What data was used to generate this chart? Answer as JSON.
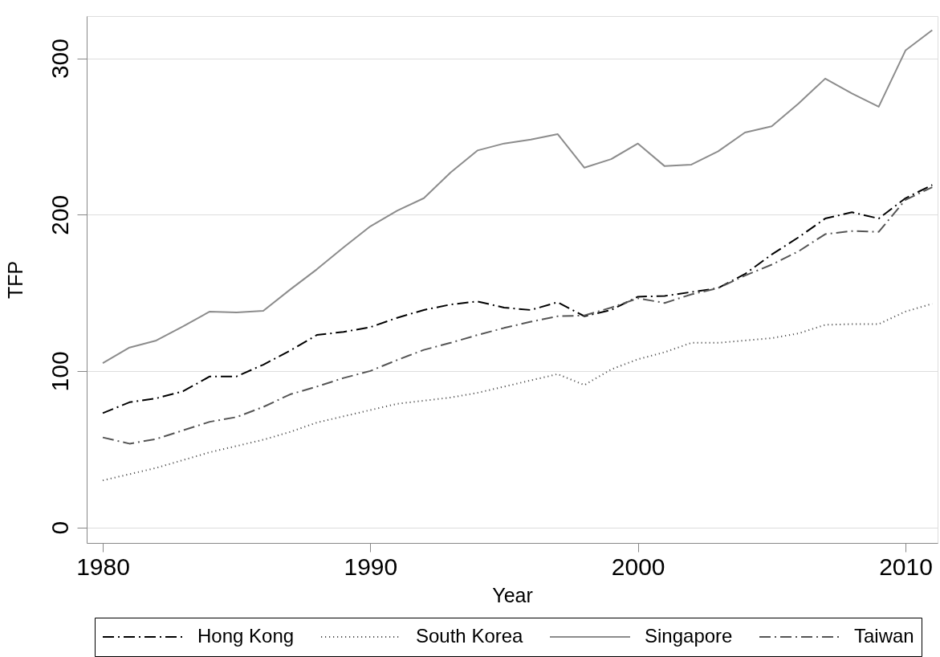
{
  "chart_data": {
    "type": "line",
    "xlabel": "Year",
    "ylabel": "TFP",
    "x": [
      1980,
      1981,
      1982,
      1983,
      1984,
      1985,
      1986,
      1987,
      1988,
      1989,
      1990,
      1991,
      1992,
      1993,
      1994,
      1995,
      1996,
      1997,
      1998,
      1999,
      2000,
      2001,
      2002,
      2003,
      2004,
      2005,
      2006,
      2007,
      2008,
      2009,
      2010,
      2011
    ],
    "xlim": [
      1979.4,
      2011.2
    ],
    "xticks": [
      1980,
      1990,
      2000,
      2010
    ],
    "ylim": [
      -10,
      327
    ],
    "yticks": [
      0,
      100,
      200,
      300
    ],
    "grid": "y",
    "legend": "bottom",
    "series": [
      {
        "name": "Hong Kong",
        "color": "#000000",
        "line_style": "dashed",
        "values": [
          73,
          80,
          82.5,
          87,
          96.5,
          96.5,
          104,
          113,
          123,
          125,
          128,
          134,
          139,
          142.5,
          144.5,
          140.5,
          139,
          144,
          135,
          139,
          147.5,
          148,
          150.5,
          153,
          162,
          174.5,
          185.5,
          197.5,
          201.5,
          197.5,
          210.5,
          219
        ]
      },
      {
        "name": "South Korea",
        "color": "#555555",
        "line_style": "dotted",
        "values": [
          30,
          34,
          38,
          43,
          48,
          52,
          56,
          61,
          67,
          71,
          75,
          79,
          81,
          83,
          86,
          90,
          94,
          98,
          91,
          101,
          107.5,
          112,
          118,
          118,
          119.5,
          121,
          124,
          129.5,
          130,
          130,
          138,
          143
        ]
      },
      {
        "name": "Singapore",
        "color": "#8c8c8c",
        "line_style": "solid",
        "values": [
          105,
          115,
          119.5,
          128.5,
          138,
          137.5,
          138.5,
          152,
          165,
          179,
          192.5,
          202.5,
          210.5,
          227,
          241,
          245.5,
          248,
          251.5,
          230,
          235.5,
          245.5,
          231,
          232,
          240.5,
          252.5,
          256.5,
          271,
          287,
          277.5,
          269,
          305,
          318
        ]
      },
      {
        "name": "Taiwan",
        "color": "#555555",
        "line_style": "dashed",
        "values": [
          57.5,
          53.5,
          56.5,
          62,
          67.5,
          70.5,
          77,
          85,
          90,
          95.5,
          100,
          107,
          113.5,
          118,
          123,
          127.5,
          131.5,
          135,
          135.5,
          140.5,
          146.5,
          143.5,
          149,
          153,
          161,
          168,
          176.5,
          187.5,
          189.5,
          189,
          209.5,
          217.5
        ]
      }
    ]
  }
}
